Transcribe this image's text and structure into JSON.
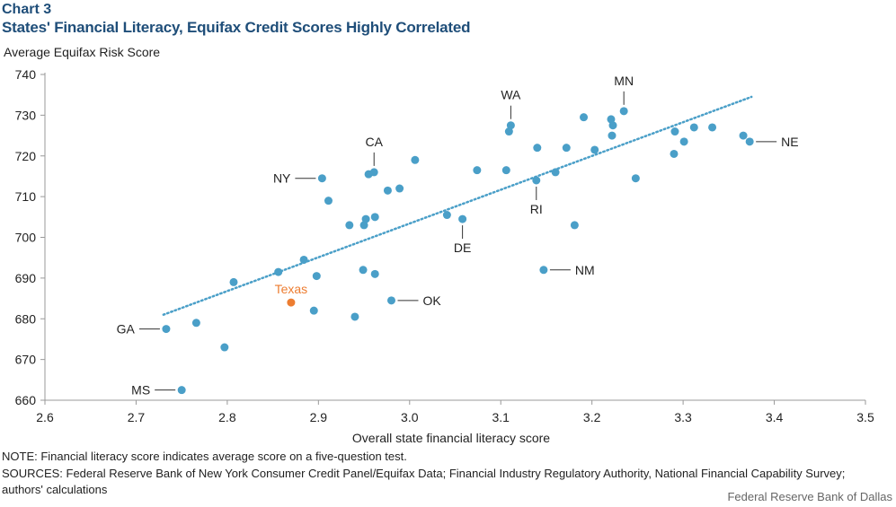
{
  "header": {
    "chart_number": "Chart 3",
    "title": "States' Financial Literacy, Equifax Credit Scores Highly Correlated"
  },
  "footer": {
    "note": "NOTE: Financial literacy score indicates average score on a five-question test.",
    "sources": "SOURCES: Federal Reserve Bank of New York Consumer Credit Panel/Equifax Data; Financial Industry Regulatory Authority, National Financial Capability Survey; authors' calculations",
    "credit": "Federal Reserve Bank of Dallas"
  },
  "colors": {
    "point": "#4a9fc8",
    "highlight": "#ed7d31",
    "trendline": "#4a9fc8",
    "axis": "#999999",
    "title": "#1f4e79"
  },
  "chart_data": {
    "type": "scatter",
    "ylabel": "Average Equifax Risk Score",
    "xlabel": "Overall state financial literacy score",
    "xlim": [
      2.6,
      3.5
    ],
    "ylim": [
      660,
      740
    ],
    "xticks": [
      "2.6",
      "2.7",
      "2.8",
      "2.9",
      "3.0",
      "3.1",
      "3.2",
      "3.3",
      "3.4",
      "3.5"
    ],
    "yticks": [
      "660",
      "670",
      "680",
      "690",
      "700",
      "710",
      "720",
      "730",
      "740"
    ],
    "grid": false,
    "trendline": {
      "style": "dotted",
      "from": [
        2.73,
        681
      ],
      "to": [
        3.375,
        734.5
      ]
    },
    "points": [
      {
        "x": 2.733,
        "y": 677.5,
        "label": "GA"
      },
      {
        "x": 2.75,
        "y": 662.5,
        "label": "MS"
      },
      {
        "x": 2.766,
        "y": 679.0
      },
      {
        "x": 2.797,
        "y": 673.0
      },
      {
        "x": 2.807,
        "y": 689.0
      },
      {
        "x": 2.856,
        "y": 691.5
      },
      {
        "x": 2.884,
        "y": 694.5
      },
      {
        "x": 2.895,
        "y": 682.0
      },
      {
        "x": 2.898,
        "y": 690.5
      },
      {
        "x": 2.904,
        "y": 714.5,
        "label": "NY"
      },
      {
        "x": 2.911,
        "y": 709.0
      },
      {
        "x": 2.934,
        "y": 703.0
      },
      {
        "x": 2.94,
        "y": 680.5
      },
      {
        "x": 2.949,
        "y": 692.0
      },
      {
        "x": 2.95,
        "y": 703.0
      },
      {
        "x": 2.952,
        "y": 704.5
      },
      {
        "x": 2.955,
        "y": 715.5
      },
      {
        "x": 2.961,
        "y": 716.0,
        "label": "CA"
      },
      {
        "x": 2.962,
        "y": 691.0
      },
      {
        "x": 2.962,
        "y": 705.0
      },
      {
        "x": 2.976,
        "y": 711.5
      },
      {
        "x": 2.98,
        "y": 684.5,
        "label": "OK"
      },
      {
        "x": 2.989,
        "y": 712.0
      },
      {
        "x": 3.006,
        "y": 719.0
      },
      {
        "x": 3.041,
        "y": 705.5
      },
      {
        "x": 3.058,
        "y": 704.5,
        "label": "DE"
      },
      {
        "x": 3.074,
        "y": 716.5
      },
      {
        "x": 3.106,
        "y": 716.5
      },
      {
        "x": 3.109,
        "y": 726.0
      },
      {
        "x": 3.111,
        "y": 727.5,
        "label": "WA"
      },
      {
        "x": 3.139,
        "y": 714.0,
        "label": "RI"
      },
      {
        "x": 3.14,
        "y": 722.0
      },
      {
        "x": 3.147,
        "y": 692.0,
        "label": "NM"
      },
      {
        "x": 3.16,
        "y": 716.0
      },
      {
        "x": 3.172,
        "y": 722.0
      },
      {
        "x": 3.181,
        "y": 703.0
      },
      {
        "x": 3.191,
        "y": 729.5
      },
      {
        "x": 3.203,
        "y": 721.5
      },
      {
        "x": 3.221,
        "y": 729.0
      },
      {
        "x": 3.222,
        "y": 725.0
      },
      {
        "x": 3.223,
        "y": 727.5
      },
      {
        "x": 3.235,
        "y": 731.0,
        "label": "MN"
      },
      {
        "x": 3.248,
        "y": 714.5
      },
      {
        "x": 3.29,
        "y": 720.5
      },
      {
        "x": 3.291,
        "y": 726.0
      },
      {
        "x": 3.301,
        "y": 723.5
      },
      {
        "x": 3.312,
        "y": 727.0
      },
      {
        "x": 3.332,
        "y": 727.0
      },
      {
        "x": 3.366,
        "y": 725.0
      },
      {
        "x": 3.373,
        "y": 723.5,
        "label": "NE"
      }
    ],
    "highlight": {
      "x": 2.87,
      "y": 684.0,
      "label": "Texas"
    }
  }
}
